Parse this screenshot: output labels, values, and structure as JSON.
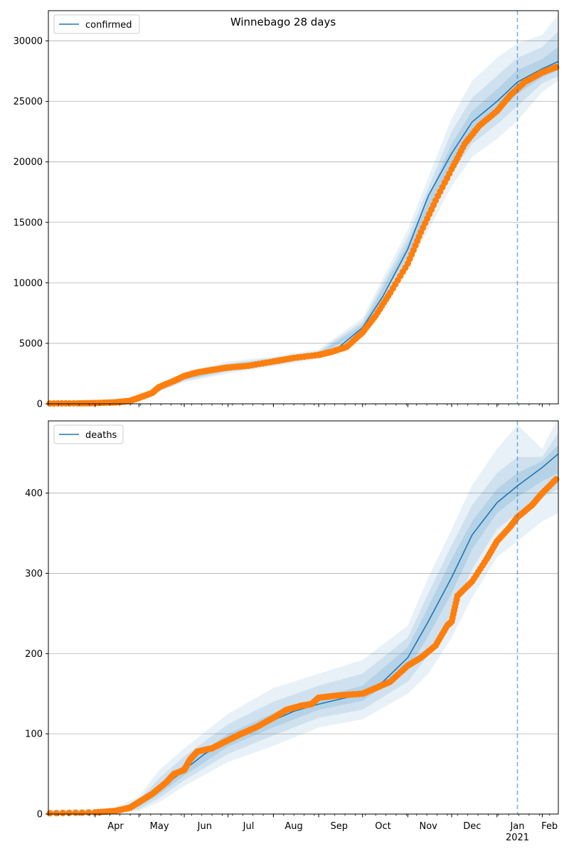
{
  "chart_data": [
    {
      "type": "line",
      "title": "Winnebago 28 days",
      "legend": {
        "label": "confirmed",
        "placement": "top-left"
      },
      "ylim": [
        0,
        32500
      ],
      "yticks": [
        0,
        5000,
        10000,
        15000,
        20000,
        25000,
        30000
      ],
      "grid": "y-major",
      "forecast_start": "2021-01-15",
      "model_line": {
        "x": [
          "2020-03-01",
          "2020-03-15",
          "2020-04-01",
          "2020-04-15",
          "2020-05-01",
          "2020-05-15",
          "2020-06-01",
          "2020-06-15",
          "2020-07-01",
          "2020-07-15",
          "2020-08-01",
          "2020-08-15",
          "2020-09-01",
          "2020-09-15",
          "2020-10-01",
          "2020-10-15",
          "2020-11-01",
          "2020-11-15",
          "2020-12-01",
          "2020-12-15",
          "2021-01-01",
          "2021-01-15",
          "2021-02-01",
          "2021-02-12"
        ],
        "y": [
          30,
          30,
          60,
          150,
          450,
          1200,
          2200,
          2700,
          3000,
          3200,
          3500,
          3800,
          4100,
          4700,
          6300,
          8900,
          12800,
          17200,
          20700,
          23300,
          25000,
          26600,
          27700,
          28300
        ]
      },
      "bands": [
        {
          "x": [
            "2020-03-01",
            "2020-05-01",
            "2020-06-01",
            "2020-07-01",
            "2020-08-01",
            "2020-09-01",
            "2020-10-01",
            "2020-11-01",
            "2020-12-01",
            "2020-12-15",
            "2021-01-01",
            "2021-01-15",
            "2021-02-01",
            "2021-02-12"
          ],
          "low": [
            0,
            350,
            1800,
            2500,
            3100,
            3700,
            5500,
            11200,
            18000,
            20400,
            21900,
            23400,
            25800,
            26700
          ],
          "high": [
            60,
            550,
            2600,
            3500,
            3900,
            4500,
            7100,
            14400,
            23600,
            26700,
            28600,
            29800,
            30500,
            32200
          ]
        },
        {
          "x": [
            "2020-03-01",
            "2020-05-01",
            "2020-06-01",
            "2020-07-01",
            "2020-08-01",
            "2020-09-01",
            "2020-10-01",
            "2020-11-01",
            "2020-12-01",
            "2020-12-15",
            "2021-01-01",
            "2021-01-15",
            "2021-02-01",
            "2021-02-12"
          ],
          "low": [
            10,
            380,
            1900,
            2650,
            3200,
            3850,
            5800,
            11800,
            19100,
            21500,
            23100,
            24600,
            26500,
            27100
          ],
          "high": [
            50,
            520,
            2500,
            3350,
            3800,
            4350,
            6800,
            13800,
            22500,
            25300,
            27100,
            28600,
            29500,
            30800
          ]
        },
        {
          "x": [
            "2020-03-01",
            "2020-05-01",
            "2020-06-01",
            "2020-07-01",
            "2020-08-01",
            "2020-09-01",
            "2020-10-01",
            "2020-11-01",
            "2020-12-01",
            "2020-12-15",
            "2021-01-01",
            "2021-01-15",
            "2021-02-01",
            "2021-02-12"
          ],
          "low": [
            20,
            410,
            2000,
            2800,
            3300,
            4000,
            6050,
            12300,
            19900,
            22400,
            24000,
            25600,
            27000,
            27600
          ],
          "high": [
            40,
            490,
            2400,
            3200,
            3700,
            4200,
            6550,
            13300,
            21500,
            24200,
            26000,
            27600,
            28500,
            29500
          ]
        }
      ],
      "observed": {
        "x": [
          "2020-03-01",
          "2020-03-20",
          "2020-04-01",
          "2020-04-15",
          "2020-04-25",
          "2020-05-01",
          "2020-05-10",
          "2020-05-15",
          "2020-05-25",
          "2020-06-01",
          "2020-06-10",
          "2020-06-20",
          "2020-07-01",
          "2020-07-15",
          "2020-08-01",
          "2020-08-15",
          "2020-09-01",
          "2020-09-10",
          "2020-09-20",
          "2020-10-01",
          "2020-10-10",
          "2020-10-20",
          "2020-11-01",
          "2020-11-10",
          "2020-11-20",
          "2020-12-01",
          "2020-12-10",
          "2020-12-20",
          "2021-01-01",
          "2021-01-10",
          "2021-01-20",
          "2021-02-01",
          "2021-02-12"
        ],
        "y": [
          30,
          40,
          60,
          120,
          250,
          500,
          900,
          1400,
          1900,
          2300,
          2600,
          2800,
          3000,
          3150,
          3500,
          3800,
          4050,
          4300,
          4700,
          5900,
          7300,
          9200,
          11600,
          14200,
          16800,
          19400,
          21500,
          23000,
          24200,
          25500,
          26600,
          27400,
          27900
        ]
      }
    },
    {
      "type": "line",
      "legend": {
        "label": "deaths",
        "placement": "top-left"
      },
      "ylim": [
        0,
        490
      ],
      "yticks": [
        0,
        100,
        200,
        300,
        400
      ],
      "grid": "y-major",
      "forecast_start": "2021-01-15",
      "xtick_labels": [
        "Apr",
        "May",
        "Jun",
        "Jul",
        "Aug",
        "Sep",
        "Oct",
        "Nov",
        "Dec",
        "Jan",
        "Feb"
      ],
      "xtick_sublabel": "2021",
      "model_line": {
        "x": [
          "2020-03-01",
          "2020-04-01",
          "2020-04-15",
          "2020-05-01",
          "2020-05-15",
          "2020-06-01",
          "2020-06-15",
          "2020-07-01",
          "2020-07-15",
          "2020-08-01",
          "2020-08-15",
          "2020-09-01",
          "2020-09-15",
          "2020-10-01",
          "2020-10-15",
          "2020-11-01",
          "2020-11-15",
          "2020-12-01",
          "2020-12-15",
          "2021-01-01",
          "2021-01-15",
          "2021-02-01",
          "2021-02-12"
        ],
        "y": [
          1,
          2,
          4,
          12,
          30,
          55,
          75,
          92,
          103,
          117,
          128,
          137,
          143,
          150,
          165,
          195,
          240,
          295,
          348,
          388,
          409,
          432,
          449
        ]
      },
      "bands": [
        {
          "x": [
            "2020-03-01",
            "2020-04-15",
            "2020-05-01",
            "2020-05-15",
            "2020-06-01",
            "2020-07-01",
            "2020-08-01",
            "2020-09-01",
            "2020-10-01",
            "2020-11-01",
            "2020-11-15",
            "2020-12-01",
            "2020-12-15",
            "2021-01-01",
            "2021-01-15",
            "2021-02-01",
            "2021-02-12"
          ],
          "low": [
            0,
            1,
            4,
            15,
            35,
            65,
            85,
            108,
            118,
            150,
            175,
            220,
            270,
            320,
            340,
            365,
            375
          ],
          "high": [
            5,
            8,
            22,
            55,
            82,
            125,
            157,
            175,
            192,
            235,
            295,
            355,
            410,
            455,
            485,
            455,
            495
          ]
        },
        {
          "x": [
            "2020-03-01",
            "2020-04-15",
            "2020-05-01",
            "2020-05-15",
            "2020-06-01",
            "2020-07-01",
            "2020-08-01",
            "2020-09-01",
            "2020-10-01",
            "2020-11-01",
            "2020-11-15",
            "2020-12-01",
            "2020-12-15",
            "2021-01-01",
            "2021-01-15",
            "2021-02-01",
            "2021-02-12"
          ],
          "low": [
            0,
            2,
            6,
            20,
            42,
            75,
            98,
            120,
            130,
            165,
            198,
            250,
            305,
            355,
            375,
            395,
            405
          ],
          "high": [
            4,
            6,
            18,
            45,
            72,
            112,
            140,
            160,
            175,
            220,
            275,
            335,
            385,
            425,
            445,
            445,
            475
          ]
        },
        {
          "x": [
            "2020-03-01",
            "2020-04-15",
            "2020-05-01",
            "2020-05-15",
            "2020-06-01",
            "2020-07-01",
            "2020-08-01",
            "2020-09-01",
            "2020-10-01",
            "2020-11-01",
            "2020-11-15",
            "2020-12-01",
            "2020-12-15",
            "2021-01-01",
            "2021-01-15",
            "2021-02-01",
            "2021-02-12"
          ],
          "low": [
            0,
            3,
            9,
            25,
            48,
            84,
            108,
            130,
            141,
            180,
            222,
            275,
            330,
            375,
            395,
            415,
            425
          ],
          "high": [
            3,
            5,
            15,
            36,
            62,
            100,
            126,
            145,
            160,
            208,
            258,
            318,
            365,
            405,
            425,
            440,
            460
          ]
        }
      ],
      "observed": {
        "x": [
          "2020-03-01",
          "2020-04-01",
          "2020-04-15",
          "2020-04-25",
          "2020-05-01",
          "2020-05-10",
          "2020-05-20",
          "2020-05-25",
          "2020-06-01",
          "2020-06-05",
          "2020-06-10",
          "2020-06-20",
          "2020-07-01",
          "2020-07-10",
          "2020-07-20",
          "2020-08-01",
          "2020-08-10",
          "2020-08-20",
          "2020-08-27",
          "2020-09-01",
          "2020-09-15",
          "2020-10-01",
          "2020-10-10",
          "2020-10-20",
          "2020-11-01",
          "2020-11-10",
          "2020-11-20",
          "2020-11-28",
          "2020-12-01",
          "2020-12-05",
          "2020-12-15",
          "2020-12-25",
          "2021-01-01",
          "2021-01-10",
          "2021-01-15",
          "2021-01-25",
          "2021-02-01",
          "2021-02-12"
        ],
        "y": [
          1,
          2,
          4,
          8,
          15,
          25,
          40,
          50,
          55,
          68,
          78,
          82,
          92,
          100,
          108,
          120,
          130,
          135,
          137,
          145,
          148,
          150,
          157,
          165,
          185,
          195,
          210,
          235,
          240,
          272,
          290,
          318,
          340,
          358,
          370,
          385,
          400,
          420
        ]
      }
    }
  ]
}
